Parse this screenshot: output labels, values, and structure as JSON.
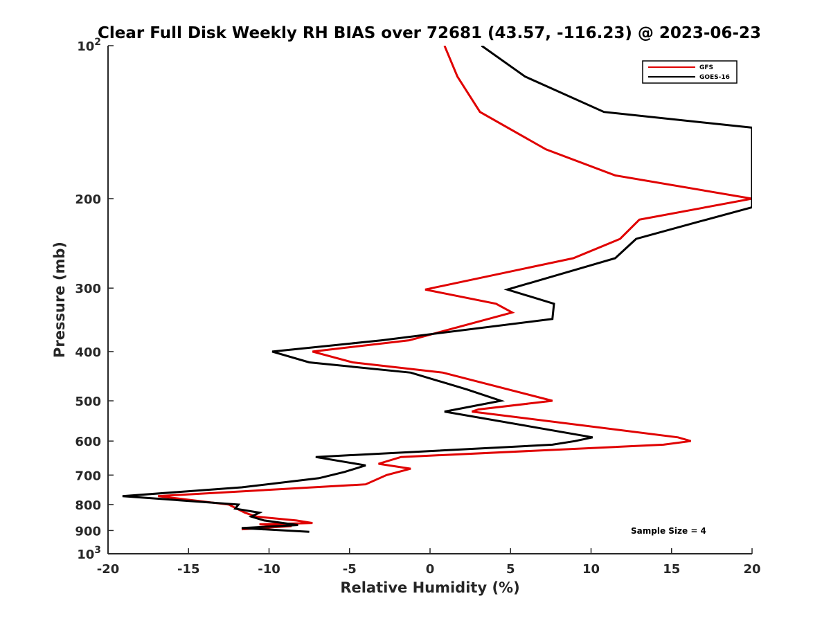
{
  "chart_data": {
    "type": "line",
    "title": "Clear Full Disk Weekly RH BIAS over 72681 (43.57, -116.23) @ 2023-06-23",
    "xlabel": "Relative Humidity (%)",
    "ylabel": "Pressure (mb)",
    "xlim": [
      -20,
      20
    ],
    "ylim": [
      100,
      1000
    ],
    "y_scale": "log",
    "y_reversed": true,
    "grid": false,
    "x_ticks": [
      "-20",
      "-15",
      "-10",
      "-5",
      "0",
      "5",
      "10",
      "15",
      "20"
    ],
    "y_ticks": [
      {
        "value": 100,
        "label": "10",
        "sup": "2"
      },
      {
        "value": 200,
        "label": "200",
        "sup": ""
      },
      {
        "value": 300,
        "label": "300",
        "sup": ""
      },
      {
        "value": 400,
        "label": "400",
        "sup": ""
      },
      {
        "value": 500,
        "label": "500",
        "sup": ""
      },
      {
        "value": 600,
        "label": "600",
        "sup": ""
      },
      {
        "value": 700,
        "label": "700",
        "sup": ""
      },
      {
        "value": 800,
        "label": "800",
        "sup": ""
      },
      {
        "value": 900,
        "label": "900",
        "sup": ""
      },
      {
        "value": 1000,
        "label": "10",
        "sup": "3"
      }
    ],
    "legend_position": "top-right",
    "annotation": "Sample Size = 4",
    "series": [
      {
        "name": "GFS",
        "color": "#e00000",
        "points": [
          [
            0.9,
            100
          ],
          [
            1.7,
            115
          ],
          [
            3.1,
            135
          ],
          [
            7.2,
            160
          ],
          [
            11.5,
            180
          ],
          [
            20.0,
            200
          ],
          [
            13.0,
            220
          ],
          [
            11.8,
            240
          ],
          [
            8.9,
            262
          ],
          [
            -0.3,
            302
          ],
          [
            4.1,
            322
          ],
          [
            5.1,
            335
          ],
          [
            -1.3,
            380
          ],
          [
            -7.3,
            400
          ],
          [
            -4.8,
            420
          ],
          [
            0.8,
            440
          ],
          [
            7.6,
            500
          ],
          [
            3.0,
            520
          ],
          [
            2.6,
            525
          ],
          [
            15.4,
            590
          ],
          [
            16.2,
            600
          ],
          [
            14.5,
            610
          ],
          [
            -1.8,
            645
          ],
          [
            -3.2,
            665
          ],
          [
            -1.2,
            680
          ],
          [
            -2.7,
            700
          ],
          [
            -4.0,
            730
          ],
          [
            -16.9,
            770
          ],
          [
            -12.5,
            800
          ],
          [
            -12.0,
            815
          ],
          [
            -11.5,
            830
          ],
          [
            -10.8,
            845
          ],
          [
            -8.3,
            860
          ],
          [
            -7.3,
            870
          ],
          [
            -10.6,
            875
          ],
          [
            -8.6,
            882
          ],
          [
            -11.7,
            895
          ]
        ]
      },
      {
        "name": "GOES-16",
        "color": "#000000",
        "points": [
          [
            3.2,
            100
          ],
          [
            5.9,
            115
          ],
          [
            10.8,
            135
          ],
          [
            20.0,
            145
          ],
          [
            20.0,
            208
          ],
          [
            16.7,
            222
          ],
          [
            12.8,
            240
          ],
          [
            11.5,
            262
          ],
          [
            4.8,
            302
          ],
          [
            7.7,
            322
          ],
          [
            7.6,
            345
          ],
          [
            -3.0,
            380
          ],
          [
            -9.8,
            400
          ],
          [
            -7.5,
            420
          ],
          [
            -1.2,
            440
          ],
          [
            2.3,
            475
          ],
          [
            4.4,
            500
          ],
          [
            1.6,
            520
          ],
          [
            0.9,
            525
          ],
          [
            10.1,
            590
          ],
          [
            9.0,
            600
          ],
          [
            7.6,
            610
          ],
          [
            -7.1,
            645
          ],
          [
            -4.0,
            670
          ],
          [
            -5.3,
            690
          ],
          [
            -6.9,
            710
          ],
          [
            -11.7,
            740
          ],
          [
            -19.1,
            770
          ],
          [
            -11.9,
            800
          ],
          [
            -12.1,
            815
          ],
          [
            -10.6,
            830
          ],
          [
            -11.1,
            845
          ],
          [
            -10.3,
            860
          ],
          [
            -8.2,
            878
          ],
          [
            -11.7,
            890
          ],
          [
            -7.5,
            905
          ]
        ]
      }
    ]
  }
}
